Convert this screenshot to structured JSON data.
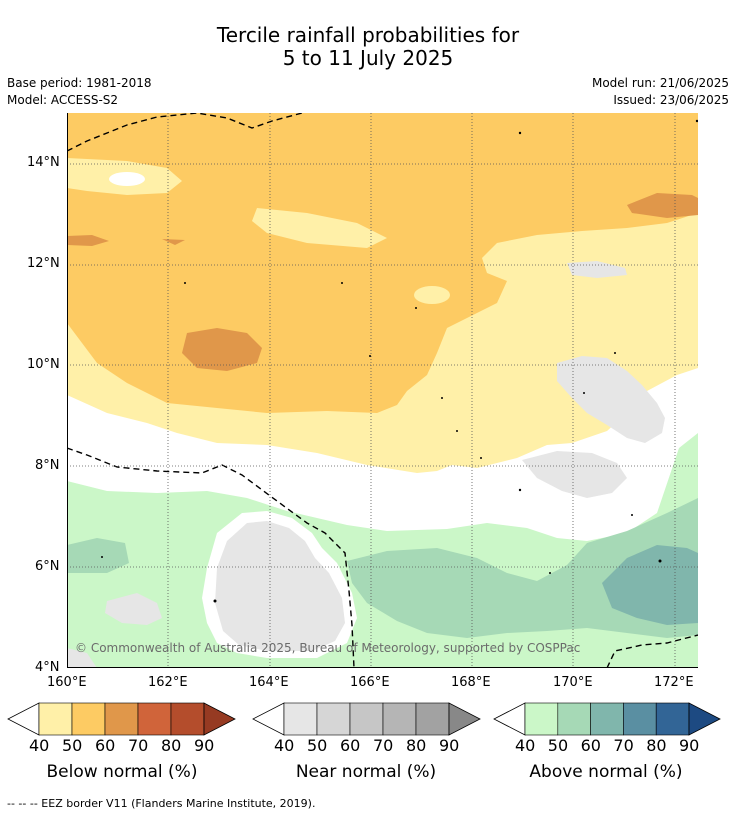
{
  "header": {
    "title_line1": "Tercile rainfall probabilities for",
    "title_line2": "5 to 11 July 2025",
    "base_period": "Base period: 1981-2018",
    "model": "Model: ACCESS-S2",
    "model_run": "Model run: 21/06/2025",
    "issued": "Issued: 23/06/2025"
  },
  "map": {
    "lat_ticks": [
      "14°N",
      "12°N",
      "10°N",
      "8°N",
      "6°N",
      "4°N"
    ],
    "lon_ticks": [
      "160°E",
      "162°E",
      "164°E",
      "166°E",
      "168°E",
      "170°E",
      "172°E"
    ],
    "copyright": "© Commonwealth of Australia 2025, Bureau of Meteorology, supported by COSPPac"
  },
  "colorbars": [
    {
      "title": "Below normal (%)",
      "ticks": [
        "40",
        "50",
        "60",
        "70",
        "80",
        "90"
      ],
      "colors": [
        "#fff0a8",
        "#fdcb63",
        "#e0974a",
        "#d0643a",
        "#b44d2c",
        "#963a22"
      ]
    },
    {
      "title": "Near normal (%)",
      "ticks": [
        "40",
        "50",
        "60",
        "70",
        "80",
        "90"
      ],
      "colors": [
        "#e6e6e6",
        "#d6d6d6",
        "#c6c6c6",
        "#b5b5b5",
        "#a2a2a2",
        "#888888"
      ]
    },
    {
      "title": "Above normal (%)",
      "ticks": [
        "40",
        "50",
        "60",
        "70",
        "80",
        "90"
      ],
      "colors": [
        "#cbf7c8",
        "#a6d9b6",
        "#80b6ac",
        "#5a8fa2",
        "#326596",
        "#1d4a82"
      ]
    }
  ],
  "footnote": "--  --  -- EEZ border V11 (Flanders Marine Institute, 2019)."
}
